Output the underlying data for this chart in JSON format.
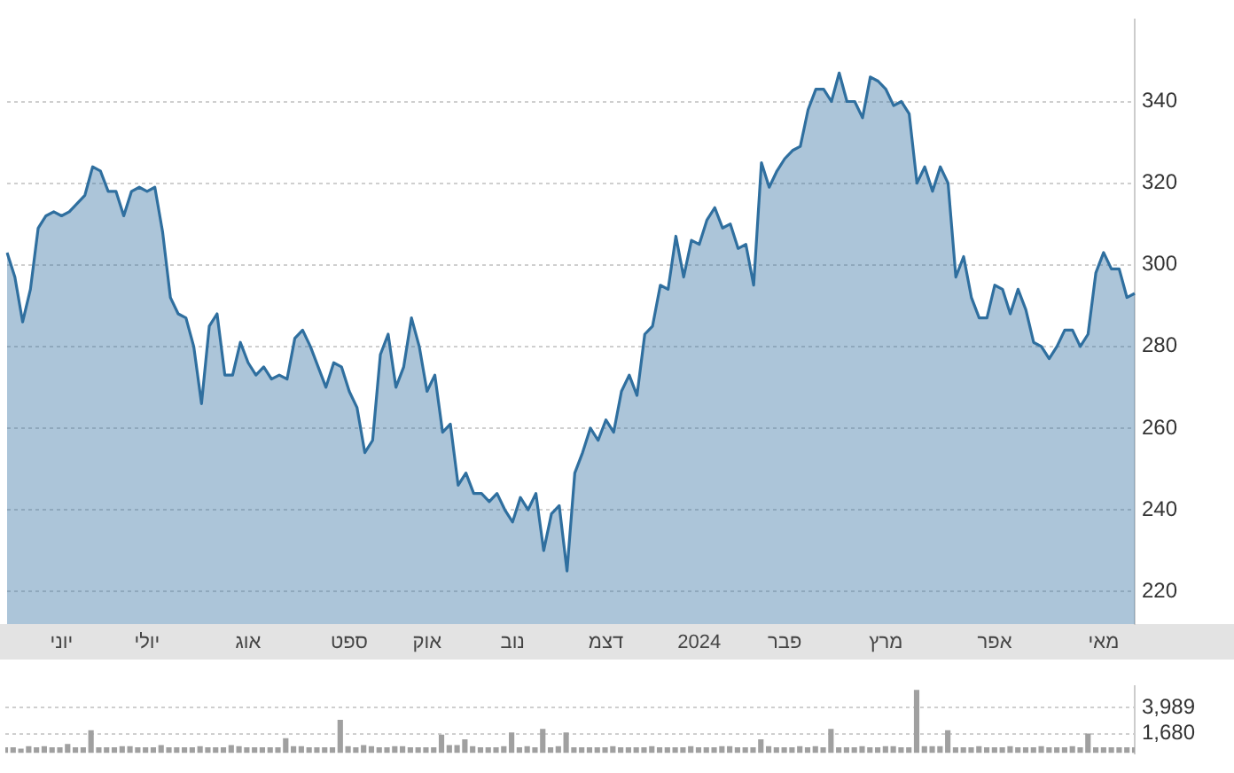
{
  "chart_data": [
    {
      "type": "area",
      "color": "#2f6f9f",
      "categories": [
        null,
        null,
        null,
        null,
        null,
        null,
        null,
        "יוני",
        null,
        null,
        null,
        null,
        null,
        null,
        null,
        null,
        null,
        null,
        "יולי",
        null,
        null,
        null,
        null,
        null,
        null,
        null,
        null,
        null,
        null,
        null,
        null,
        "אוג",
        null,
        null,
        null,
        null,
        null,
        null,
        null,
        null,
        null,
        null,
        null,
        null,
        "ספט",
        null,
        null,
        null,
        null,
        null,
        null,
        null,
        null,
        null,
        "אוק",
        null,
        null,
        null,
        null,
        null,
        null,
        null,
        null,
        null,
        null,
        "נוב",
        null,
        null,
        null,
        null,
        null,
        null,
        null,
        null,
        null,
        null,
        null,
        "דצמ",
        null,
        null,
        null,
        null,
        null,
        null,
        null,
        null,
        null,
        null,
        null,
        "2024",
        null,
        null,
        null,
        null,
        null,
        null,
        null,
        null,
        null,
        null,
        "פבר",
        null,
        null,
        null,
        null,
        null,
        null,
        null,
        null,
        null,
        null,
        null,
        null,
        "מרץ",
        null,
        null,
        null,
        null,
        null,
        null,
        null,
        null,
        null,
        null,
        null,
        null,
        null,
        "אפר",
        null,
        null,
        null,
        null,
        null,
        null,
        null,
        null,
        null,
        null,
        null,
        null,
        null,
        "מאי",
        null,
        null,
        null,
        null
      ],
      "values": [
        303,
        297,
        286,
        294,
        309,
        312,
        313,
        312,
        313,
        315,
        317,
        324,
        323,
        318,
        318,
        312,
        318,
        319,
        318,
        319,
        308,
        292,
        288,
        287,
        280,
        266,
        285,
        288,
        273,
        273,
        281,
        276,
        273,
        275,
        272,
        273,
        272,
        282,
        284,
        280,
        275,
        270,
        276,
        275,
        269,
        265,
        254,
        257,
        278,
        283,
        270,
        275,
        287,
        280,
        269,
        273,
        259,
        261,
        246,
        249,
        244,
        244,
        242,
        244,
        240,
        237,
        243,
        240,
        244,
        230,
        239,
        241,
        225,
        249,
        254,
        260,
        257,
        262,
        259,
        269,
        273,
        268,
        283,
        285,
        295,
        294,
        307,
        297,
        306,
        305,
        311,
        314,
        309,
        310,
        304,
        305,
        295,
        325,
        319,
        323,
        326,
        328,
        329,
        338,
        343,
        343,
        340,
        347,
        340,
        340,
        336,
        346,
        345,
        343,
        339,
        340,
        337,
        320,
        324,
        318,
        324,
        320,
        297,
        302,
        292,
        287,
        287,
        295,
        294,
        288,
        294,
        289,
        281,
        280,
        277,
        280,
        284,
        284,
        280,
        283,
        298,
        303,
        299,
        299,
        292,
        293
      ],
      "ylim": [
        212,
        360
      ],
      "yticks": [
        220,
        240,
        260,
        280,
        300,
        320,
        340
      ],
      "grid": "y"
    },
    {
      "type": "bar",
      "color": "#a0a0a0",
      "tick_labels": "y",
      "categories": [
        null,
        null,
        null,
        null,
        null,
        null,
        null,
        null,
        null,
        null,
        null,
        null,
        null,
        null,
        null,
        null,
        null,
        null,
        null,
        null,
        null,
        null,
        null,
        null,
        null,
        null,
        null,
        null,
        null,
        null,
        null,
        null,
        null,
        null,
        null,
        null,
        null,
        null,
        null,
        null,
        null,
        null,
        null,
        null,
        null,
        null,
        null,
        null,
        null,
        null,
        null,
        null,
        null,
        null,
        null,
        null,
        null,
        null,
        null,
        null,
        null,
        null,
        null,
        null,
        null,
        null,
        null,
        null,
        null,
        null,
        null,
        null,
        null,
        null,
        null,
        null,
        null,
        null,
        null,
        null,
        null,
        null,
        null,
        null,
        null,
        null,
        null,
        null,
        null,
        null,
        null,
        null,
        null,
        null,
        null,
        null,
        null,
        null,
        null,
        null,
        null,
        null,
        null,
        null,
        null,
        null,
        null,
        null,
        null,
        null,
        null,
        null,
        null,
        null,
        null,
        null,
        null,
        null,
        null,
        null,
        null,
        null,
        null,
        null,
        null,
        null,
        null,
        null,
        null,
        null,
        null,
        null,
        null,
        null,
        null,
        null,
        null,
        null,
        null,
        null,
        null,
        null,
        null,
        null,
        null,
        null
      ],
      "values": [
        500,
        500,
        400,
        600,
        500,
        600,
        500,
        500,
        800,
        500,
        500,
        2000,
        500,
        500,
        500,
        600,
        600,
        500,
        500,
        500,
        700,
        500,
        500,
        500,
        500,
        600,
        500,
        500,
        500,
        700,
        600,
        500,
        500,
        500,
        500,
        500,
        1300,
        600,
        600,
        500,
        500,
        500,
        500,
        2900,
        600,
        500,
        700,
        600,
        500,
        500,
        600,
        600,
        500,
        500,
        500,
        500,
        1600,
        700,
        700,
        1200,
        600,
        500,
        500,
        500,
        600,
        1800,
        500,
        600,
        500,
        2100,
        500,
        600,
        1800,
        500,
        500,
        500,
        500,
        500,
        600,
        500,
        500,
        500,
        500,
        600,
        500,
        500,
        500,
        500,
        600,
        500,
        500,
        500,
        600,
        600,
        500,
        500,
        500,
        1200,
        600,
        500,
        500,
        500,
        600,
        500,
        600,
        500,
        2100,
        500,
        500,
        500,
        600,
        500,
        500,
        600,
        600,
        500,
        500,
        5500,
        600,
        600,
        600,
        2000,
        500,
        500,
        500,
        600,
        500,
        500,
        500,
        600,
        500,
        500,
        500,
        600,
        500,
        500,
        500,
        600,
        500,
        1700,
        500,
        500,
        500,
        500,
        500,
        500
      ],
      "ylim": [
        0,
        5800
      ],
      "yticks": [
        {
          "value": 1680,
          "label": "1,680"
        },
        {
          "value": 3989,
          "label": "3,989"
        }
      ],
      "grid": "y"
    }
  ]
}
